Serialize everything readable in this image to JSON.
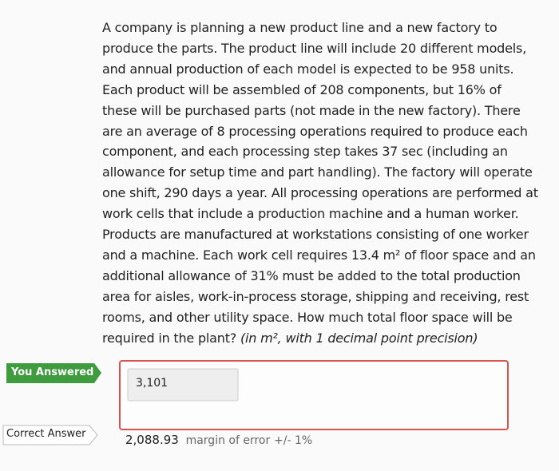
{
  "question": {
    "lines": [
      "A company is planning a new product line and a new factory to",
      "produce the parts. The product line will include 20 different models,",
      "and annual production of each model is expected to be 958 units.",
      "Each product will be assembled of 208 components, but 16% of",
      "these will be purchased parts (not made in the new factory). There",
      "are an average of 8 processing operations required to produce each",
      "component, and each processing step takes 37 sec (including an",
      "allowance for setup time and part handling). The factory will operate",
      "one shift, 290 days a year. All processing operations are performed at",
      "work cells that include a production machine and a human worker.",
      "Products are manufactured at workstations consisting of one worker",
      "and a machine. Each work cell requires 13.4 m² of floor space and an",
      "additional allowance of 31% must be added to the total production",
      "area for aisles, work-in-process storage, shipping and receiving, rest",
      "rooms, and other utility space. How much total floor space will be"
    ],
    "last_line": {
      "text": "required in the plant?",
      "italic": "(in m², with 1 decimal point precision)"
    }
  },
  "answered": {
    "label": "You Answered",
    "value": "3,101"
  },
  "correct": {
    "label": "Correct Answer",
    "value": "2,088.93",
    "note": "margin of error",
    "tolerance": "+/- 1%"
  }
}
